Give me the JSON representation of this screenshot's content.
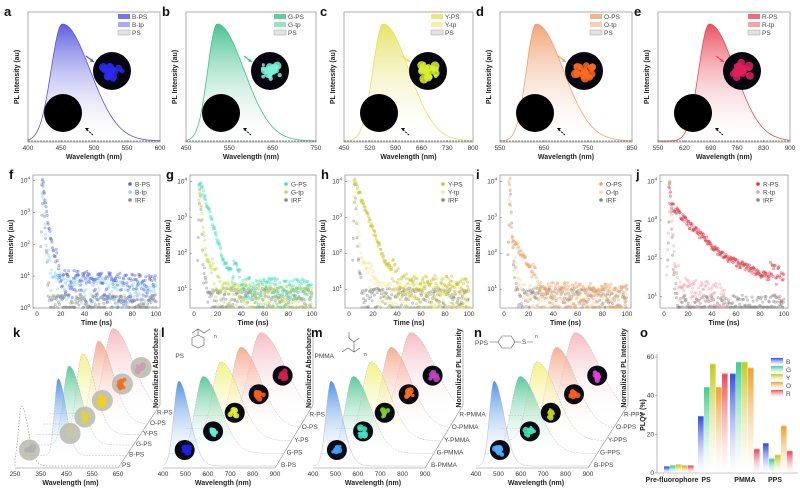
{
  "chart_data": [
    {
      "panel": "a",
      "type": "area",
      "xlabel": "Wavelength (nm)",
      "ylabel": "PL Intensity (au)",
      "xlim": [
        400,
        600
      ],
      "xticks": [
        400,
        450,
        500,
        550,
        600
      ],
      "color": "#5555dd",
      "peak": 452,
      "sigma_left": 17,
      "sigma_right": 42,
      "legend": [
        "B-PS",
        "B-tp",
        "PS"
      ],
      "inset_color": "#2a2af0",
      "inset_off_color": "#000000"
    },
    {
      "panel": "b",
      "type": "area",
      "xlabel": "Wavelength (nm)",
      "ylabel": "PL Intensity (au)",
      "xlim": [
        450,
        750
      ],
      "xticks": [
        450,
        550,
        650,
        750
      ],
      "color": "#3fbf8a",
      "peak": 522,
      "sigma_left": 22,
      "sigma_right": 62,
      "legend": [
        "G-PS",
        "G-tp",
        "PS"
      ],
      "inset_color": "#7ff0d8",
      "inset_off_color": "#000000"
    },
    {
      "panel": "c",
      "type": "area",
      "xlabel": "Wavelength (nm)",
      "ylabel": "PL Intensity (au)",
      "xlim": [
        450,
        800
      ],
      "xticks": [
        450,
        520,
        590,
        660,
        730,
        800
      ],
      "color": "#e6e060",
      "peak": 556,
      "sigma_left": 28,
      "sigma_right": 70,
      "legend": [
        "Y-PS",
        "Y-tp",
        "PS"
      ],
      "inset_color": "#d8f030",
      "inset_off_color": "#000000"
    },
    {
      "panel": "d",
      "type": "area",
      "xlabel": "Wavelength (nm)",
      "ylabel": "PL Intensity (au)",
      "xlim": [
        550,
        850
      ],
      "xticks": [
        550,
        650,
        750,
        850
      ],
      "color": "#f0a070",
      "peak": 632,
      "sigma_left": 22,
      "sigma_right": 62,
      "legend": [
        "O-PS",
        "O-tp",
        "PS"
      ],
      "inset_color": "#ff6a20",
      "inset_off_color": "#000000"
    },
    {
      "panel": "e",
      "type": "area",
      "xlabel": "Wavelength (nm)",
      "ylabel": "PL Intensity (au)",
      "xlim": [
        550,
        900
      ],
      "xticks": [
        550,
        620,
        690,
        760,
        830,
        900
      ],
      "color": "#e84a58",
      "peak": 686,
      "sigma_left": 28,
      "sigma_right": 68,
      "legend": [
        "R-PS",
        "R-tp",
        "PS"
      ],
      "inset_color": "#e0205a",
      "inset_off_color": "#000000"
    },
    {
      "panel": "f",
      "type": "scatter",
      "yscale": "log",
      "xlabel": "Time (ns)",
      "ylabel": "Intensity (au)",
      "xlim": [
        0,
        100
      ],
      "ylim": [
        1,
        15000
      ],
      "xticks": [
        0,
        20,
        40,
        60,
        80,
        100
      ],
      "yticks": [
        1,
        10,
        100,
        1000,
        10000
      ],
      "series": [
        {
          "name": "B-PS",
          "color": "#5566e0",
          "keypoints": [
            [
              4,
              9000
            ],
            [
              5,
              10000
            ],
            [
              10,
              300
            ],
            [
              20,
              6
            ],
            [
              100,
              4
            ]
          ]
        },
        {
          "name": "B-tp",
          "color": "#8fd8f0",
          "keypoints": [
            [
              4,
              3000
            ],
            [
              5,
              5000
            ],
            [
              8,
              60
            ],
            [
              13,
              5
            ],
            [
              100,
              2
            ]
          ]
        },
        {
          "name": "IRF",
          "color": "#888888",
          "keypoints": [
            [
              3,
              50
            ],
            [
              5,
              8000
            ],
            [
              8,
              30
            ],
            [
              11,
              1
            ],
            [
              100,
              1
            ]
          ]
        }
      ]
    },
    {
      "panel": "g",
      "type": "scatter",
      "yscale": "log",
      "xlabel": "Time (ns)",
      "ylabel": "Intensity (au)",
      "xlim": [
        0,
        100
      ],
      "ylim": [
        3,
        15000
      ],
      "xticks": [
        0,
        20,
        40,
        60,
        80,
        100
      ],
      "yticks": [
        10,
        100,
        1000,
        10000
      ],
      "series": [
        {
          "name": "G-PS",
          "color": "#40e0c0",
          "keypoints": [
            [
              4,
              9000
            ],
            [
              5,
              10000
            ],
            [
              15,
              900
            ],
            [
              25,
              60
            ],
            [
              45,
              8
            ],
            [
              100,
              7
            ]
          ]
        },
        {
          "name": "G-tp",
          "color": "#c4dc40",
          "keypoints": [
            [
              4,
              3000
            ],
            [
              5,
              5000
            ],
            [
              10,
              80
            ],
            [
              25,
              6
            ],
            [
              100,
              4
            ]
          ]
        },
        {
          "name": "IRF",
          "color": "#888888",
          "keypoints": [
            [
              3,
              50
            ],
            [
              5,
              8000
            ],
            [
              8,
              30
            ],
            [
              11,
              4
            ],
            [
              100,
              4
            ]
          ]
        }
      ]
    },
    {
      "panel": "h",
      "type": "scatter",
      "yscale": "log",
      "xlabel": "Time (ns)",
      "ylabel": "Intensity (au)",
      "xlim": [
        0,
        100
      ],
      "ylim": [
        3,
        15000
      ],
      "xticks": [
        0,
        20,
        40,
        60,
        80,
        100
      ],
      "yticks": [
        10,
        100,
        1000,
        10000
      ],
      "series": [
        {
          "name": "Y-PS",
          "color": "#c8c020",
          "keypoints": [
            [
              4,
              9000
            ],
            [
              5,
              10000
            ],
            [
              15,
              1200
            ],
            [
              30,
              60
            ],
            [
              45,
              10
            ],
            [
              100,
              8
            ]
          ]
        },
        {
          "name": "Y-tp",
          "color": "#f0ec90",
          "keypoints": [
            [
              4,
              3000
            ],
            [
              5,
              5000
            ],
            [
              10,
              80
            ],
            [
              25,
              6
            ],
            [
              100,
              5
            ]
          ]
        },
        {
          "name": "IRF",
          "color": "#888888",
          "keypoints": [
            [
              3,
              50
            ],
            [
              5,
              8000
            ],
            [
              8,
              30
            ],
            [
              11,
              4
            ],
            [
              100,
              4
            ]
          ]
        }
      ]
    },
    {
      "panel": "i",
      "type": "scatter",
      "yscale": "log",
      "xlabel": "Time (ns)",
      "ylabel": "Intensity (au)",
      "xlim": [
        0,
        100
      ],
      "ylim": [
        3,
        15000
      ],
      "xticks": [
        0,
        20,
        40,
        60,
        80,
        100
      ],
      "yticks": [
        10,
        100,
        1000,
        10000
      ],
      "series": [
        {
          "name": "O-PS",
          "color": "#f0a060",
          "keypoints": [
            [
              4,
              9000
            ],
            [
              5,
              10000
            ],
            [
              6,
              250
            ],
            [
              20,
              50
            ],
            [
              30,
              6
            ],
            [
              100,
              5
            ]
          ]
        },
        {
          "name": "O-tp",
          "color": "#f8d8a8",
          "keypoints": [
            [
              4,
              3000
            ],
            [
              5,
              5000
            ],
            [
              8,
              40
            ],
            [
              15,
              5
            ],
            [
              100,
              4
            ]
          ]
        },
        {
          "name": "IRF",
          "color": "#888888",
          "keypoints": [
            [
              3,
              50
            ],
            [
              5,
              8000
            ],
            [
              8,
              30
            ],
            [
              11,
              4
            ],
            [
              100,
              4
            ]
          ]
        }
      ]
    },
    {
      "panel": "j",
      "type": "scatter",
      "yscale": "log",
      "xlabel": "Time (ns)",
      "ylabel": "Intensity (au)",
      "xlim": [
        0,
        100
      ],
      "ylim": [
        5,
        15000
      ],
      "xticks": [
        0,
        20,
        40,
        60,
        80,
        100
      ],
      "yticks": [
        10,
        100,
        1000,
        10000
      ],
      "series": [
        {
          "name": "R-PS",
          "color": "#e03040",
          "keypoints": [
            [
              4,
              9000
            ],
            [
              5,
              10000
            ],
            [
              6,
              2500
            ],
            [
              20,
              800
            ],
            [
              50,
              110
            ],
            [
              100,
              20
            ]
          ]
        },
        {
          "name": "R-tp",
          "color": "#f4a0b0",
          "keypoints": [
            [
              2,
              20
            ],
            [
              5,
              5000
            ],
            [
              9,
              80
            ],
            [
              14,
              12
            ],
            [
              50,
              8
            ],
            [
              52,
              3
            ]
          ]
        },
        {
          "name": "IRF",
          "color": "#888888",
          "keypoints": [
            [
              3,
              50
            ],
            [
              5,
              8000
            ],
            [
              8,
              30
            ],
            [
              11,
              4
            ],
            [
              100,
              4
            ]
          ]
        }
      ]
    },
    {
      "panel": "k",
      "type": "area",
      "style": "waterfall",
      "xlabel": "Wavelength (nm)",
      "zlabel": "Normalized Absorbance",
      "xlim": [
        250,
        650
      ],
      "xticks": [
        250,
        350,
        450,
        550,
        650
      ],
      "series": [
        {
          "name": "PS",
          "color": "#aaaaaa",
          "peak": 275,
          "sigma": 12,
          "inset_color": "#b0b0b0"
        },
        {
          "name": "B-PS",
          "color": "#2f7fe0",
          "peak": 390,
          "sigma": 14,
          "inset_color": "#c8c8a0"
        },
        {
          "name": "G-PS",
          "color": "#3fbf8a",
          "peak": 405,
          "sigma": 22,
          "inset_color": "#e0d040"
        },
        {
          "name": "Y-PS",
          "color": "#f0f070",
          "peak": 430,
          "sigma": 22,
          "inset_color": "#f0d020"
        },
        {
          "name": "O-PS",
          "color": "#f4a080",
          "peak": 465,
          "sigma": 26,
          "inset_color": "#f07020"
        },
        {
          "name": "R-PS",
          "color": "#f4b0b8",
          "peak": 495,
          "sigma": 35,
          "inset_color": "#c8a0b0"
        }
      ]
    },
    {
      "panel": "l",
      "type": "area",
      "style": "waterfall",
      "xlabel": "Wavelength (nm)",
      "zlabel": "Normalized Absorbance",
      "xlim": [
        400,
        900
      ],
      "xticks": [
        400,
        500,
        600,
        700,
        800,
        900
      ],
      "polymer": "PS",
      "subscript": "n",
      "series": [
        {
          "name": "B-PS",
          "color": "#2f7fe0",
          "peak": 470,
          "sigma": 22,
          "inset_color": "#2020e0"
        },
        {
          "name": "G-PS",
          "color": "#3fbf8a",
          "peak": 545,
          "sigma": 35,
          "inset_color": "#60f0d0"
        },
        {
          "name": "Y-PS",
          "color": "#f0f070",
          "peak": 590,
          "sigma": 38,
          "inset_color": "#e0f030"
        },
        {
          "name": "O-PS",
          "color": "#f4a080",
          "peak": 645,
          "sigma": 40,
          "inset_color": "#ff5a20"
        },
        {
          "name": "R-PS",
          "color": "#f4b0b8",
          "peak": 700,
          "sigma": 48,
          "inset_color": "#d02050"
        }
      ]
    },
    {
      "panel": "m",
      "type": "area",
      "style": "waterfall",
      "xlabel": "Wavelength (nm)",
      "zlabel": "Normalized PL Intensity",
      "xlim": [
        400,
        900
      ],
      "xticks": [
        400,
        500,
        600,
        700,
        800,
        900
      ],
      "polymer": "PMMA",
      "subscript": "n",
      "series": [
        {
          "name": "B-PMMA",
          "color": "#2f7fe0",
          "peak": 480,
          "sigma": 22,
          "inset_color": "#40a0ff"
        },
        {
          "name": "G-PMMA",
          "color": "#3fbf8a",
          "peak": 545,
          "sigma": 35,
          "inset_color": "#40e0c0"
        },
        {
          "name": "Y-PMMA",
          "color": "#f0f070",
          "peak": 590,
          "sigma": 38,
          "inset_color": "#80d030"
        },
        {
          "name": "O-PMMA",
          "color": "#f4a080",
          "peak": 645,
          "sigma": 40,
          "inset_color": "#ff6a20"
        },
        {
          "name": "R-PMMA",
          "color": "#f4b0b8",
          "peak": 700,
          "sigma": 48,
          "inset_color": "#c040c0"
        }
      ]
    },
    {
      "panel": "n",
      "type": "area",
      "style": "waterfall",
      "xlabel": "Wavelength (nm)",
      "zlabel": "Normalized PL Intensity",
      "xlim": [
        400,
        900
      ],
      "xticks": [
        400,
        500,
        600,
        700,
        800,
        900
      ],
      "polymer": "PPS",
      "sulfur": "S",
      "subscript": "n",
      "series": [
        {
          "name": "B-PPS",
          "color": "#2f7fe0",
          "peak": 480,
          "sigma": 20,
          "inset_color": "#50b0ff"
        },
        {
          "name": "G-PPS",
          "color": "#3fbf8a",
          "peak": 560,
          "sigma": 38,
          "inset_color": "#40e0b0"
        },
        {
          "name": "Y-PPS",
          "color": "#f0f070",
          "peak": 600,
          "sigma": 40,
          "inset_color": "#c0d020"
        },
        {
          "name": "O-PPS",
          "color": "#f4a080",
          "peak": 650,
          "sigma": 40,
          "inset_color": "#ff5a20"
        },
        {
          "name": "R-PPS",
          "color": "#f4b0b8",
          "peak": 700,
          "sigma": 48,
          "inset_color": "#e040e0"
        }
      ]
    },
    {
      "panel": "o",
      "type": "bar",
      "ylabel": "PLQY (%)",
      "ylim": [
        0,
        60
      ],
      "yticks": [
        0,
        20,
        40,
        60
      ],
      "categories": [
        "Pre-fluorophore",
        "PS",
        "PMMA",
        "PPS"
      ],
      "series": [
        {
          "name": "B",
          "color": "#2f4fe0",
          "values": [
            3,
            29,
            51,
            15
          ]
        },
        {
          "name": "G",
          "color": "#3fcf8a",
          "values": [
            3.5,
            44,
            57,
            7
          ]
        },
        {
          "name": "Y",
          "color": "#c8c820",
          "values": [
            4,
            56,
            57,
            9
          ]
        },
        {
          "name": "O",
          "color": "#f0a030",
          "values": [
            3.5,
            44,
            54,
            24
          ]
        },
        {
          "name": "R",
          "color": "#f04a58",
          "values": [
            3.5,
            51,
            12,
            11
          ]
        }
      ]
    }
  ]
}
